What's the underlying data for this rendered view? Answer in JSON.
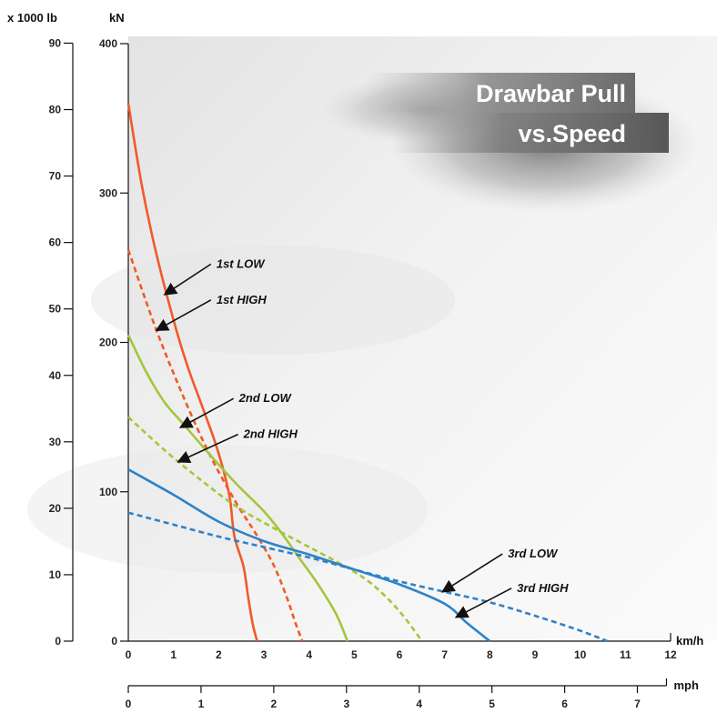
{
  "chart_data": {
    "type": "line",
    "title_lines": [
      "Drawbar Pull",
      "vs.Speed"
    ],
    "y_left": {
      "unit": "x 1000 lb",
      "ticks": [
        0,
        10,
        20,
        30,
        40,
        50,
        60,
        70,
        80,
        90
      ]
    },
    "y_right": {
      "unit": "kN",
      "ticks": [
        0,
        100,
        200,
        300,
        400
      ],
      "ylim": [
        0,
        400
      ]
    },
    "x_kmh": {
      "unit": "km/h",
      "ticks": [
        0,
        1,
        2,
        3,
        4,
        5,
        6,
        7,
        8,
        9,
        10,
        11,
        12
      ],
      "xlim": [
        0,
        12
      ]
    },
    "x_mph": {
      "unit": "mph",
      "ticks": [
        0,
        1,
        2,
        3,
        4,
        5,
        6,
        7
      ]
    },
    "series": [
      {
        "name": "1st LOW",
        "color": "#f05a28",
        "dash": "solid",
        "x": [
          0,
          0.3,
          0.6,
          1.0,
          1.3,
          1.6,
          1.9,
          2.1,
          2.25,
          2.35,
          2.55,
          2.65,
          2.75,
          2.85
        ],
        "y": [
          360,
          305,
          262,
          215,
          185,
          160,
          135,
          115,
          95,
          70,
          50,
          30,
          12,
          0
        ]
      },
      {
        "name": "1st HIGH",
        "color": "#f05a28",
        "dash": "dashed",
        "x": [
          0,
          0.6,
          1.2,
          1.8,
          2.4,
          2.8,
          3.2,
          3.5,
          3.7,
          3.85
        ],
        "y": [
          262,
          210,
          165,
          125,
          92,
          73,
          52,
          30,
          12,
          0
        ]
      },
      {
        "name": "2nd LOW",
        "color": "#a3c63b",
        "dash": "solid",
        "x": [
          0,
          0.4,
          0.8,
          1.2,
          1.8,
          2.4,
          3.0,
          3.4,
          3.8,
          4.2,
          4.6,
          4.85
        ],
        "y": [
          205,
          180,
          160,
          146,
          125,
          105,
          87,
          72,
          55,
          38,
          18,
          0
        ]
      },
      {
        "name": "2nd HIGH",
        "color": "#a3c63b",
        "dash": "dashed",
        "x": [
          0,
          0.8,
          1.6,
          2.4,
          3.2,
          4.0,
          4.8,
          5.4,
          6.0,
          6.5
        ],
        "y": [
          150,
          128,
          108,
          90,
          76,
          63,
          50,
          38,
          20,
          0
        ]
      },
      {
        "name": "3rd LOW",
        "color": "#2f82c8",
        "dash": "solid",
        "x": [
          0,
          1.0,
          2.0,
          3.0,
          4.0,
          5.0,
          6.0,
          7.0,
          7.5,
          8.0
        ],
        "y": [
          115,
          98,
          80,
          67,
          58,
          48,
          38,
          25,
          12,
          0
        ]
      },
      {
        "name": "3rd HIGH",
        "color": "#2f82c8",
        "dash": "dashed",
        "x": [
          0,
          1.0,
          2.0,
          3.0,
          4.0,
          5.0,
          6.0,
          7.0,
          8.0,
          9.0,
          10.0,
          10.6
        ],
        "y": [
          86,
          78,
          70,
          63,
          56,
          48,
          40,
          33,
          26,
          17,
          7,
          0
        ]
      }
    ],
    "annotations": [
      {
        "text": "1st LOW",
        "tx": 1.95,
        "ty": 250,
        "ax": 0.8,
        "ay": 232
      },
      {
        "text": "1st HIGH",
        "tx": 1.95,
        "ty": 226,
        "ax": 0.62,
        "ay": 208
      },
      {
        "text": "2nd LOW",
        "tx": 2.45,
        "ty": 160,
        "ax": 1.15,
        "ay": 143
      },
      {
        "text": "2nd HIGH",
        "tx": 2.55,
        "ty": 136,
        "ax": 1.1,
        "ay": 120
      },
      {
        "text": "3rd LOW",
        "tx": 8.4,
        "ty": 56,
        "ax": 6.95,
        "ay": 33
      },
      {
        "text": "3rd HIGH",
        "tx": 8.6,
        "ty": 33,
        "ax": 7.25,
        "ay": 16
      }
    ]
  }
}
